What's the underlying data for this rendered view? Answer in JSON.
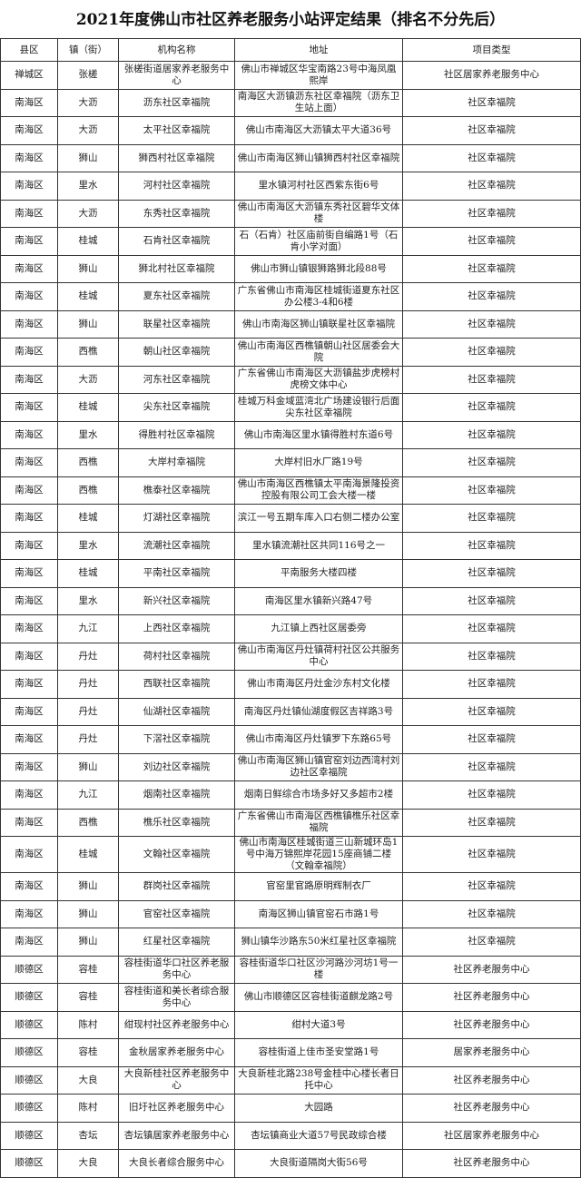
{
  "title": "2021年度佛山市社区养老服务小站评定结果（排名不分先后）",
  "headers": [
    "县区",
    "镇（街）",
    "机构名称",
    "地址",
    "项目类型"
  ],
  "rows": [
    [
      "禅城区",
      "张槎",
      "张槎街道居家养老服务中心",
      "佛山市禅城区华宝南路23号中海凤凰熙岸",
      "社区居家养老服务中心"
    ],
    [
      "南海区",
      "大沥",
      "沥东社区幸福院",
      "南海区大沥镇沥东社区幸福院（沥东卫生站上面）",
      "社区幸福院"
    ],
    [
      "南海区",
      "大沥",
      "太平社区幸福院",
      "佛山市南海区大沥镇太平大道36号",
      "社区幸福院"
    ],
    [
      "南海区",
      "狮山",
      "狮西村社区幸福院",
      "佛山市南海区狮山镇狮西村社区幸福院",
      "社区幸福院"
    ],
    [
      "南海区",
      "里水",
      "河村社区幸福院",
      "里水镇河村社区西紫东街6号",
      "社区幸福院"
    ],
    [
      "南海区",
      "大沥",
      "东秀社区幸福院",
      "佛山市南海区大沥镇东秀社区碧华文体楼",
      "社区幸福院"
    ],
    [
      "南海区",
      "桂城",
      "石肯社区幸福院",
      "石（石肯）社区庙前街自编路1号（石肯小学对面）",
      "社区幸福院"
    ],
    [
      "南海区",
      "狮山",
      "狮北村社区幸福院",
      "佛山市狮山镇银狮路狮北段88号",
      "社区幸福院"
    ],
    [
      "南海区",
      "桂城",
      "夏东社区幸福院",
      "广东省佛山市南海区桂城街道夏东社区办公楼3-4和6楼",
      "社区幸福院"
    ],
    [
      "南海区",
      "狮山",
      "联星社区幸福院",
      "佛山市南海区狮山镇联星社区幸福院",
      "社区幸福院"
    ],
    [
      "南海区",
      "西樵",
      "朝山社区幸福院",
      "佛山市南海区西樵镇朝山社区居委会大院",
      "社区幸福院"
    ],
    [
      "南海区",
      "大沥",
      "河东社区幸福院",
      "广东省佛山市南海区大沥镇盐步虎榜村虎榜文体中心",
      "社区幸福院"
    ],
    [
      "南海区",
      "桂城",
      "尖东社区幸福院",
      "桂城万科金域蓝湾北广场建设银行后面尖东社区幸福院",
      "社区幸福院"
    ],
    [
      "南海区",
      "里水",
      "得胜村社区幸福院",
      "佛山市南海区里水镇得胜村东道6号",
      "社区幸福院"
    ],
    [
      "南海区",
      "西樵",
      "大岸村幸福院",
      "大岸村旧水厂路19号",
      "社区幸福院"
    ],
    [
      "南海区",
      "西樵",
      "樵泰社区幸福院",
      "佛山市南海区西樵镇太平南海景隆投资控股有限公司工会大楼一楼",
      "社区幸福院"
    ],
    [
      "南海区",
      "桂城",
      "灯湖社区幸福院",
      "滨江一号五期车库入口右侧二楼办公室",
      "社区幸福院"
    ],
    [
      "南海区",
      "里水",
      "流潮社区幸福院",
      "里水镇流潮社区共同116号之一",
      "社区幸福院"
    ],
    [
      "南海区",
      "桂城",
      "平南社区幸福院",
      "平南服务大楼四楼",
      "社区幸福院"
    ],
    [
      "南海区",
      "里水",
      "新兴社区幸福院",
      "南海区里水镇新兴路47号",
      "社区幸福院"
    ],
    [
      "南海区",
      "九江",
      "上西社区幸福院",
      "九江镇上西社区居委旁",
      "社区幸福院"
    ],
    [
      "南海区",
      "丹灶",
      "荷村社区幸福院",
      "佛山市南海区丹灶镇荷村社区公共服务中心",
      "社区幸福院"
    ],
    [
      "南海区",
      "丹灶",
      "西联社区幸福院",
      "佛山市南海区丹灶金沙东村文化楼",
      "社区幸福院"
    ],
    [
      "南海区",
      "丹灶",
      "仙湖社区幸福院",
      "南海区丹灶镇仙湖度假区吉祥路3号",
      "社区幸福院"
    ],
    [
      "南海区",
      "丹灶",
      "下滘社区幸福院",
      "佛山市南海区丹灶镇罗下东路65号",
      "社区幸福院"
    ],
    [
      "南海区",
      "狮山",
      "刘边社区幸福院",
      "佛山市南海区狮山镇官窑刘边西湾村刘边社区幸福院",
      "社区幸福院"
    ],
    [
      "南海区",
      "九江",
      "烟南社区幸福院",
      "烟南日鲜综合市场多好又多超市2楼",
      "社区幸福院"
    ],
    [
      "南海区",
      "西樵",
      "樵乐社区幸福院",
      "广东省佛山市南海区西樵镇樵乐社区幸福院",
      "社区幸福院"
    ],
    [
      "南海区",
      "桂城",
      "文翰社区幸福院",
      "佛山市南海区桂城街道三山新城环岛1号中海万锦熙岸花园15座商铺二楼（文翰幸福院）",
      "社区幸福院"
    ],
    [
      "南海区",
      "狮山",
      "群岗社区幸福院",
      "官窑里官路原明辉制衣厂",
      "社区幸福院"
    ],
    [
      "南海区",
      "狮山",
      "官窑社区幸福院",
      "南海区狮山镇官窑石市路1号",
      "社区幸福院"
    ],
    [
      "南海区",
      "狮山",
      "红星社区幸福院",
      "狮山镇华沙路东50米红星社区幸福院",
      "社区幸福院"
    ],
    [
      "顺德区",
      "容桂",
      "容桂街道华口社区养老服务中心",
      "容桂街道华口社区沙河路沙河坊1号一楼",
      "社区养老服务中心"
    ],
    [
      "顺德区",
      "容桂",
      "容桂街道和美长者综合服务中心",
      "佛山市顺德区区容桂街道麒龙路2号",
      "社区养老服务中心"
    ],
    [
      "顺德区",
      "陈村",
      "绀现村社区养老服务中心",
      "绀村大道3号",
      "社区养老服务中心"
    ],
    [
      "顺德区",
      "容桂",
      "金秋居家养老服务中心",
      "容桂街道上佳市圣安堂路1号",
      "居家养老服务中心"
    ],
    [
      "顺德区",
      "大良",
      "大良新桂社区养老服务中心",
      "大良新桂北路238号金桂中心楼长者日托中心",
      "社区养老服务中心"
    ],
    [
      "顺德区",
      "陈村",
      "旧圩社区养老服务中心",
      "大园路",
      "社区养老服务中心"
    ],
    [
      "顺德区",
      "杏坛",
      "杏坛镇居家养老服务中心",
      "杏坛镇商业大道57号民政综合楼",
      "社区居家养老服务中心"
    ],
    [
      "顺德区",
      "大良",
      "大良长者综合服务中心",
      "大良街道隔岗大街56号",
      "社区养老服务中心"
    ]
  ]
}
